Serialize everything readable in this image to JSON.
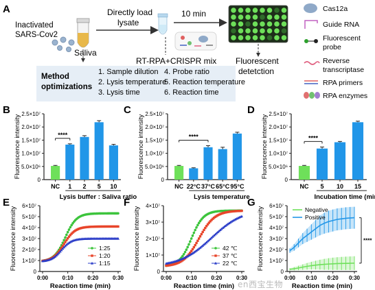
{
  "panel_a": {
    "letter": "A",
    "inactivated_label_l1": "Inactivated",
    "inactivated_label_l2": "SARS-Cov2",
    "saliva": "Saliva",
    "directly_load_l1": "Directly load",
    "directly_load_l2": "lysate",
    "ten_min": "10 min",
    "mix_label": "RT-RPA+CRISPR mix",
    "fluor_detect_l1": "Fluorescent",
    "fluor_detect_l2": "detetction",
    "method_l1": "Method",
    "method_l2": "optimizations",
    "steps": [
      "1. Sample dilution",
      "2. Lysis temperature",
      "3. Lysis time",
      "4. Probe ratio",
      "5. Reaction temperature",
      "6. Reaction time"
    ],
    "legend": [
      {
        "label": "Cas12a",
        "icon": "cas12a-icon"
      },
      {
        "label": "Guide RNA",
        "icon": "guide-rna-icon"
      },
      {
        "label": "Fluorescent probe",
        "l1": "Fluorescent",
        "l2": "probe",
        "icon": "probe-icon"
      },
      {
        "label": "Reverse transcriptase",
        "l1": "Reverse",
        "l2": "transcriptase",
        "icon": "transcriptase-icon"
      },
      {
        "label": "RPA primers",
        "icon": "primers-icon"
      },
      {
        "label": "RPA enzymes",
        "icon": "enzymes-icon"
      }
    ],
    "colors": {
      "arrow": "#333333",
      "box": "#e6eef6",
      "cas": "#8fa9c8",
      "well_on": "#6ee05a",
      "well_off": "#2f6b2a"
    }
  },
  "chart_data": [
    {
      "panel": "B",
      "type": "bar",
      "ylabel": "Fluorescence intensity",
      "xlabel": "Lysis buffer : Saliva ratio",
      "categories": [
        "NC",
        "1",
        "2",
        "5",
        "10"
      ],
      "values": [
        5200000.0,
        13300000.0,
        16200000.0,
        21800000.0,
        13000000.0
      ],
      "errors": [
        200000.0,
        300000.0,
        500000.0,
        600000.0,
        400000.0
      ],
      "colors": [
        "#6ee05a",
        "#2196e8",
        "#2196e8",
        "#2196e8",
        "#2196e8"
      ],
      "ylim": [
        0,
        25000000.0
      ],
      "yticks": [
        0,
        5000000.0,
        10000000.0,
        15000000.0,
        20000000.0,
        25000000.0
      ],
      "yticklabels": [
        "0",
        "5.0×10⁶",
        "1.0×10⁷",
        "1.5×10⁷",
        "2.0×10⁷",
        "2.5×10⁷"
      ],
      "significance": {
        "from": 0,
        "to": 1,
        "label": "****"
      }
    },
    {
      "panel": "C",
      "type": "bar",
      "ylabel": "Fluorescence intensity",
      "xlabel": "Lysis temperature",
      "categories": [
        "NC",
        "22°C",
        "37°C",
        "65°C",
        "95°C"
      ],
      "values": [
        5200000.0,
        4300000.0,
        12300000.0,
        11600000.0,
        17500000.0
      ],
      "errors": [
        200000.0,
        200000.0,
        600000.0,
        700000.0,
        500000.0
      ],
      "colors": [
        "#6ee05a",
        "#2196e8",
        "#2196e8",
        "#2196e8",
        "#2196e8"
      ],
      "ylim": [
        0,
        25000000.0
      ],
      "yticks": [
        0,
        5000000.0,
        10000000.0,
        15000000.0,
        20000000.0,
        25000000.0
      ],
      "yticklabels": [
        "0",
        "5.0×10⁶",
        "1.0×10⁷",
        "1.5×10⁷",
        "2.0×10⁷",
        "2.5×10⁷"
      ],
      "significance": {
        "from": 0,
        "to": 2,
        "label": "****"
      }
    },
    {
      "panel": "D",
      "type": "bar",
      "ylabel": "Fluorescence intensity",
      "xlabel": "Incubation time (min)",
      "categories": [
        "NC",
        "5",
        "10",
        "15"
      ],
      "values": [
        5200000.0,
        11800000.0,
        14200000.0,
        21800000.0
      ],
      "errors": [
        200000.0,
        600000.0,
        300000.0,
        400000.0
      ],
      "colors": [
        "#6ee05a",
        "#2196e8",
        "#2196e8",
        "#2196e8"
      ],
      "ylim": [
        0,
        25000000.0
      ],
      "yticks": [
        0,
        5000000.0,
        10000000.0,
        15000000.0,
        20000000.0,
        25000000.0
      ],
      "yticklabels": [
        "0",
        "5.0×10⁶",
        "1.0×10⁷",
        "1.5×10⁷",
        "2.0×10⁷",
        "2.5×10⁷"
      ],
      "significance": {
        "from": 0,
        "to": 1,
        "label": "****"
      }
    },
    {
      "panel": "E",
      "type": "line",
      "ylabel": "Fluorescence intensity",
      "xlabel": "Reaction time (min)",
      "x": [
        0,
        2,
        4,
        6,
        8,
        10,
        12,
        14,
        16,
        18,
        20,
        22,
        24,
        26,
        28,
        30
      ],
      "xlim": [
        0,
        30
      ],
      "xticks": [
        0,
        10,
        20,
        30
      ],
      "xticklabels": [
        "0:00",
        "0:10",
        "0:20",
        "0:30"
      ],
      "ylim": [
        0,
        60000000.0
      ],
      "yticks": [
        0,
        10000000.0,
        20000000.0,
        30000000.0,
        40000000.0,
        50000000.0,
        60000000.0
      ],
      "yticklabels": [
        "0",
        "1×10⁷",
        "2×10⁷",
        "3×10⁷",
        "4×10⁷",
        "5×10⁷",
        "6×10⁷"
      ],
      "series": [
        {
          "name": "1:25",
          "color": "#3cc43c",
          "marker": "circle",
          "plateau": 53000000.0,
          "start": 9000000.0,
          "k": 0.45,
          "mid": 9
        },
        {
          "name": "1:20",
          "color": "#e8452a",
          "marker": "square",
          "plateau": 41000000.0,
          "start": 9000000.0,
          "k": 0.45,
          "mid": 8.5
        },
        {
          "name": "1:15",
          "color": "#2a3cc8",
          "marker": "triangle",
          "plateau": 30000000.0,
          "start": 9000000.0,
          "k": 0.5,
          "mid": 7.5
        }
      ],
      "legend_position": "bottom-right"
    },
    {
      "panel": "F",
      "type": "line",
      "ylabel": "Fluorescence intensity",
      "xlabel": "Reaction time (min)",
      "x": [
        0,
        2,
        4,
        6,
        8,
        10,
        12,
        14,
        16,
        18,
        20,
        22,
        24,
        26,
        28,
        30
      ],
      "xlim": [
        0,
        30
      ],
      "xticks": [
        0,
        10,
        20,
        30
      ],
      "xticklabels": [
        "0:00",
        "0:10",
        "0:20",
        "0:30"
      ],
      "ylim": [
        0,
        40000000.0
      ],
      "yticks": [
        0,
        10000000.0,
        20000000.0,
        30000000.0,
        40000000.0
      ],
      "yticklabels": [
        "0",
        "1×10⁷",
        "2×10⁷",
        "3×10⁷",
        "4×10⁷"
      ],
      "series": [
        {
          "name": "42 ℃",
          "color": "#3cc43c",
          "marker": "circle",
          "plateau": 37000000.0,
          "start": 3000000.0,
          "k": 0.42,
          "mid": 10
        },
        {
          "name": "37 ℃",
          "color": "#e8452a",
          "marker": "square",
          "plateau": 37000000.0,
          "start": 3000000.0,
          "k": 0.32,
          "mid": 13
        },
        {
          "name": "22 ℃",
          "color": "#2a3cc8",
          "marker": "triangle",
          "plateau": 38000000.0,
          "start": 3000000.0,
          "k": 0.16,
          "mid": 18
        }
      ],
      "legend_position": "bottom-right"
    },
    {
      "panel": "G",
      "type": "line",
      "ylabel": "Fluorescence intensity",
      "xlabel": "Reaction time (min)",
      "x": [
        0,
        2,
        4,
        6,
        8,
        10,
        12,
        14,
        16,
        18,
        20,
        22,
        24,
        26,
        28,
        30
      ],
      "xlim": [
        0,
        30
      ],
      "xticks": [
        0,
        10,
        20,
        30
      ],
      "xticklabels": [
        "0:00",
        "0:10",
        "0:20",
        "0:30"
      ],
      "ylim": [
        0,
        60000000.0
      ],
      "yticks": [
        0,
        10000000.0,
        20000000.0,
        30000000.0,
        40000000.0,
        50000000.0,
        60000000.0
      ],
      "yticklabels": [
        "0",
        "1×10⁷",
        "2×10⁷",
        "3×10⁷",
        "4×10⁷",
        "5×10⁷",
        "6×10⁷"
      ],
      "series": [
        {
          "name": "Negative",
          "color": "#6ee05a",
          "values": [
            2000000.0,
            2500000.0,
            3200000.0,
            4000000.0,
            4700000.0,
            5300000.0,
            5800000.0,
            6200000.0,
            6500000.0,
            6800000.0,
            7000000.0,
            7200000.0,
            7300000.0,
            7400000.0,
            7500000.0,
            7600000.0
          ],
          "errors": [
            1000000.0,
            1500000.0,
            2000000.0,
            2500000.0,
            3000000.0,
            3500000.0,
            4000000.0,
            4500000.0,
            5000000.0,
            5300000.0,
            5600000.0,
            5800000.0,
            6000000.0,
            6100000.0,
            6200000.0,
            6300000.0
          ]
        },
        {
          "name": "Positive",
          "color": "#2196e8",
          "values": [
            19000000.0,
            22000000.0,
            26000000.0,
            30000000.0,
            33000000.0,
            36000000.0,
            39000000.0,
            42000000.0,
            44000000.0,
            45500000.0,
            46500000.0,
            47500000.0,
            48000000.0,
            48500000.0,
            48800000.0,
            49000000.0
          ],
          "errors": [
            2000000.0,
            3000000.0,
            4000000.0,
            5000000.0,
            6000000.0,
            7000000.0,
            8000000.0,
            9000000.0,
            9500000.0,
            10000000.0,
            10000000.0,
            10000000.0,
            10000000.0,
            10000000.0,
            10000000.0,
            10000000.0
          ]
        }
      ],
      "significance": {
        "label": "****"
      },
      "legend_position": "top-left"
    }
  ],
  "watermark": "en西宝生物"
}
